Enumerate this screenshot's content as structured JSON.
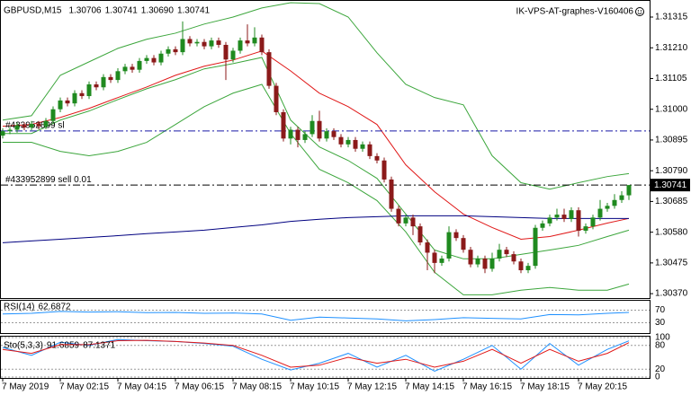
{
  "chart_data": {
    "type": "candlestick",
    "quote": {
      "symbol": "GBPUSD,M15",
      "value_labels": [
        "1.30706",
        "1.30741",
        "1.30690",
        "1.30741"
      ]
    },
    "watermark": "IK-VPS-AT-graphes-V160406",
    "categories": [
      "7 May 2019",
      null,
      null,
      null,
      null,
      null,
      null,
      null,
      "7 May 02:15",
      null,
      null,
      null,
      null,
      null,
      null,
      null,
      "7 May 04:15",
      null,
      null,
      null,
      null,
      null,
      null,
      null,
      "7 May 06:15",
      null,
      null,
      null,
      null,
      null,
      null,
      null,
      "7 May 08:15",
      null,
      null,
      null,
      null,
      null,
      null,
      null,
      "7 May 10:15",
      null,
      null,
      null,
      null,
      null,
      null,
      null,
      "7 May 12:15",
      null,
      null,
      null,
      null,
      null,
      null,
      null,
      "7 May 14:15",
      null,
      null,
      null,
      null,
      null,
      null,
      null,
      "7 May 16:15",
      null,
      null,
      null,
      null,
      null,
      null,
      null,
      "7 May 18:15",
      null,
      null,
      null,
      null,
      null,
      null,
      null,
      "7 May 20:15",
      null,
      null,
      null,
      null,
      null,
      null,
      null
    ],
    "open": [
      1.3091,
      1.30925,
      1.3093,
      1.30945,
      1.30938,
      1.3095,
      1.30942,
      1.3096,
      1.31,
      1.3103,
      1.3102,
      1.31055,
      1.31045,
      1.31085,
      1.31075,
      1.3111,
      1.311,
      1.3113,
      1.31145,
      1.31135,
      1.31165,
      1.31175,
      1.3116,
      1.3119,
      1.31205,
      1.31195,
      1.3124,
      1.31225,
      1.3123,
      1.31215,
      1.31235,
      1.3122,
      1.3117,
      1.312,
      1.31235,
      1.31225,
      1.31245,
      1.31195,
      1.3108,
      1.3099,
      1.309,
      1.3093,
      1.30895,
      1.30915,
      1.3096,
      1.309,
      1.30925,
      1.30905,
      1.3088,
      1.30895,
      1.30865,
      1.3088,
      1.3084,
      1.30825,
      1.3076,
      1.3066,
      1.3061,
      1.3063,
      1.306,
      1.30545,
      1.3051,
      1.30475,
      1.3049,
      1.3058,
      1.3056,
      1.3052,
      1.3047,
      1.3049,
      1.30455,
      1.3049,
      1.3052,
      1.30505,
      1.3048,
      1.3045,
      1.30465,
      1.30595,
      1.3061,
      1.3063,
      1.3064,
      1.30625,
      1.30655,
      1.30585,
      1.306,
      1.3063,
      1.3066,
      1.3067,
      1.3069,
      1.30706
    ],
    "high": [
      1.30935,
      1.3094,
      1.30955,
      1.30955,
      1.3096,
      1.3096,
      1.3097,
      1.3101,
      1.3104,
      1.3104,
      1.31065,
      1.31065,
      1.31095,
      1.31095,
      1.3112,
      1.3112,
      1.3114,
      1.31155,
      1.31155,
      1.31175,
      1.31185,
      1.31185,
      1.312,
      1.31215,
      1.31215,
      1.313,
      1.3125,
      1.3124,
      1.3124,
      1.31245,
      1.31245,
      1.3123,
      1.3121,
      1.31245,
      1.3129,
      1.3128,
      1.31255,
      1.31205,
      1.3109,
      1.31,
      1.3094,
      1.3094,
      1.30925,
      1.3098,
      1.30995,
      1.30935,
      1.30935,
      1.30915,
      1.30905,
      1.30905,
      1.3089,
      1.3089,
      1.3085,
      1.30835,
      1.3077,
      1.3067,
      1.3064,
      1.3064,
      1.3061,
      1.30555,
      1.3052,
      1.305,
      1.306,
      1.3059,
      1.3057,
      1.3053,
      1.305,
      1.305,
      1.3051,
      1.3054,
      1.3053,
      1.30515,
      1.3049,
      1.30475,
      1.30605,
      1.3062,
      1.3064,
      1.3066,
      1.3066,
      1.30665,
      1.30665,
      1.3061,
      1.3064,
      1.3069,
      1.3068,
      1.3071,
      1.3072,
      1.30741
    ],
    "low": [
      1.309,
      1.30915,
      1.3092,
      1.30928,
      1.30928,
      1.30932,
      1.30932,
      1.3095,
      1.3099,
      1.3101,
      1.3101,
      1.31035,
      1.31035,
      1.31065,
      1.31065,
      1.3109,
      1.3109,
      1.3112,
      1.31125,
      1.31125,
      1.31155,
      1.3115,
      1.3115,
      1.3118,
      1.31185,
      1.31185,
      1.31215,
      1.31215,
      1.31205,
      1.31205,
      1.3121,
      1.311,
      1.3116,
      1.3119,
      1.31215,
      1.31215,
      1.31185,
      1.3107,
      1.3098,
      1.3089,
      1.3088,
      1.3087,
      1.30885,
      1.30905,
      1.3089,
      1.3089,
      1.30895,
      1.3087,
      1.3087,
      1.30855,
      1.30855,
      1.3083,
      1.30815,
      1.3075,
      1.3065,
      1.306,
      1.306,
      1.3057,
      1.30535,
      1.3045,
      1.3044,
      1.30465,
      1.3048,
      1.3055,
      1.3051,
      1.3046,
      1.3046,
      1.3044,
      1.30445,
      1.3048,
      1.30495,
      1.3047,
      1.3044,
      1.3044,
      1.30455,
      1.30585,
      1.306,
      1.3062,
      1.30615,
      1.30615,
      1.30565,
      1.30575,
      1.3059,
      1.3062,
      1.3065,
      1.3066,
      1.3068,
      1.3069
    ],
    "close": [
      1.30925,
      1.3093,
      1.30945,
      1.30938,
      1.3095,
      1.30942,
      1.3096,
      1.31,
      1.3103,
      1.3102,
      1.31055,
      1.31045,
      1.31085,
      1.31075,
      1.3111,
      1.311,
      1.3113,
      1.31145,
      1.31135,
      1.31165,
      1.31175,
      1.3116,
      1.3119,
      1.31205,
      1.31195,
      1.3124,
      1.31225,
      1.3123,
      1.31215,
      1.31235,
      1.3122,
      1.3117,
      1.312,
      1.31235,
      1.31225,
      1.31245,
      1.31195,
      1.3108,
      1.3099,
      1.309,
      1.3093,
      1.30895,
      1.30915,
      1.3096,
      1.309,
      1.30925,
      1.30905,
      1.3088,
      1.30895,
      1.30865,
      1.3088,
      1.3084,
      1.30825,
      1.3076,
      1.3066,
      1.3061,
      1.3063,
      1.306,
      1.30545,
      1.3051,
      1.30475,
      1.3049,
      1.3058,
      1.3056,
      1.3052,
      1.3047,
      1.3049,
      1.30455,
      1.3049,
      1.3052,
      1.30505,
      1.3048,
      1.3045,
      1.30465,
      1.30595,
      1.3061,
      1.3063,
      1.3064,
      1.30625,
      1.30655,
      1.30585,
      1.306,
      1.3063,
      1.3066,
      1.3067,
      1.3069,
      1.30706,
      1.30741
    ],
    "up_color": "#1f8a1f",
    "down_color": "#8b1a1a",
    "ylim": [
      1.30355,
      1.31361
    ],
    "yticks": [
      1.31315,
      {
        "value": 1.3121,
        "label": "1.31210"
      },
      1.31105,
      {
        "value": 1.31,
        "label": "1.31000"
      },
      1.30895,
      {
        "value": 1.3079,
        "label": "1.30790"
      },
      1.30685,
      {
        "value": 1.3058,
        "label": "1.30580"
      },
      1.30475,
      {
        "value": 1.3037,
        "label": "1.30370"
      }
    ],
    "orders": [
      {
        "label": "#433952899 sl",
        "price": 1.30926,
        "color": "#1a1aa8"
      },
      {
        "label": "#433952899 sell 0.01",
        "price": 1.30741,
        "color": "#000000"
      }
    ],
    "indicator_x": [
      0,
      4,
      8,
      12,
      16,
      20,
      24,
      28,
      32,
      36,
      40,
      44,
      48,
      52,
      56,
      60,
      64,
      68,
      72,
      76,
      80,
      84,
      87
    ],
    "indicators": [
      {
        "color": "#3ca63c",
        "values": [
          1.30963,
          1.30978,
          1.31116,
          1.31162,
          1.31208,
          1.31239,
          1.3126,
          1.31291,
          1.31315,
          1.31346,
          1.31364,
          1.31361,
          1.31315,
          1.31193,
          1.31085,
          1.3104,
          1.31015,
          1.30841,
          1.30749,
          1.30727,
          1.30749,
          1.3077,
          1.3078
        ]
      },
      {
        "color": "#3ca63c",
        "values": [
          1.30917,
          1.30917,
          1.30963,
          1.30994,
          1.31033,
          1.3107,
          1.31101,
          1.31138,
          1.31156,
          1.31177,
          1.30963,
          1.30871,
          1.30825,
          1.30764,
          1.30642,
          1.30519,
          1.30489,
          1.30489,
          1.30504,
          1.30519,
          1.30535,
          1.30565,
          1.30587
        ]
      },
      {
        "color": "#3ca63c",
        "values": [
          1.30887,
          1.30887,
          1.30856,
          1.30841,
          1.30856,
          1.30887,
          1.30948,
          1.31009,
          1.31055,
          1.31085,
          1.30917,
          1.30795,
          1.30749,
          1.30688,
          1.30581,
          1.30443,
          1.30366,
          1.30366,
          1.30382,
          1.30391,
          1.30382,
          1.30382,
          1.30403
        ]
      },
      {
        "color": "#e01818",
        "values": [
          1.30942,
          1.30948,
          1.30972,
          1.31003,
          1.3104,
          1.31076,
          1.31116,
          1.31147,
          1.31168,
          1.31199,
          1.31131,
          1.31055,
          1.31009,
          1.30948,
          1.3081,
          1.30718,
          1.30642,
          1.30596,
          1.30556,
          1.30565,
          1.30587,
          1.30611,
          1.30627
        ]
      },
      {
        "color": "#000080",
        "values": [
          1.30544,
          1.3055,
          1.30556,
          1.30562,
          1.30568,
          1.30575,
          1.30581,
          1.30587,
          1.30596,
          1.30605,
          1.30617,
          1.30624,
          1.3063,
          1.30633,
          1.30636,
          1.30636,
          1.30636,
          1.30633,
          1.3063,
          1.30627,
          1.30627,
          1.30627,
          1.30627
        ]
      }
    ],
    "rsi": {
      "title": "RSI(14)",
      "color": "#1e90ff",
      "ylim": [
        0,
        100
      ],
      "yticks": [
        30,
        70
      ],
      "values": [
        58,
        60,
        66,
        64,
        65,
        62,
        63,
        60,
        61,
        58,
        38,
        48,
        45,
        42,
        36,
        40,
        46,
        44,
        42,
        56,
        55,
        60,
        62.6872
      ]
    },
    "stoch": {
      "title": "Sto(5,3,3)",
      "ylim": [
        0,
        100
      ],
      "yticks": [
        0,
        20,
        80,
        100
      ],
      "series": [
        {
          "color": "#1e90ff",
          "values": [
            75,
            55,
            88,
            80,
            95,
            92,
            90,
            85,
            78,
            45,
            18,
            35,
            60,
            25,
            55,
            15,
            45,
            80,
            20,
            85,
            30,
            70,
            91.6859
          ]
        },
        {
          "color": "#e01818",
          "values": [
            70,
            60,
            82,
            82,
            92,
            93,
            90,
            86,
            80,
            55,
            25,
            30,
            50,
            35,
            45,
            25,
            40,
            70,
            35,
            70,
            40,
            60,
            87.1371
          ]
        }
      ]
    }
  }
}
